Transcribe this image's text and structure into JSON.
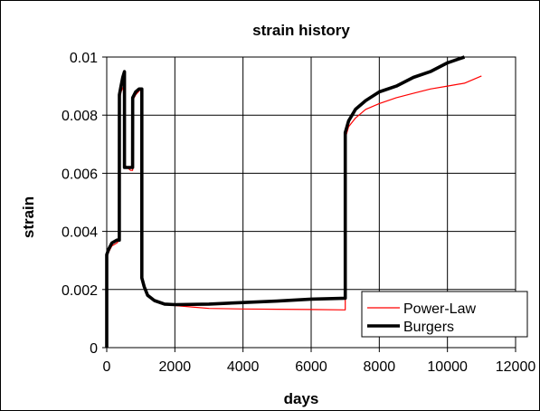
{
  "chart_data": {
    "type": "line",
    "title": "strain history",
    "xlabel": "days",
    "ylabel": "strain",
    "xlim": [
      0,
      12000
    ],
    "ylim": [
      0,
      0.01
    ],
    "xticks": [
      0,
      2000,
      4000,
      6000,
      8000,
      10000,
      12000
    ],
    "xtick_labels": [
      "0",
      "2000",
      "4000",
      "6000",
      "8000",
      "10000",
      "12000"
    ],
    "yticks": [
      0,
      0.002,
      0.004,
      0.006,
      0.008,
      0.01
    ],
    "ytick_labels": [
      "0",
      "0.002",
      "0.004",
      "0.006",
      "0.008",
      "0.01"
    ],
    "grid": true,
    "legend_position": "bottom-right",
    "series": [
      {
        "name": "Power-Law",
        "color": "#ff0000",
        "line_style": "thin",
        "x": [
          0,
          1,
          60,
          150,
          300,
          370,
          371,
          420,
          500,
          520,
          521,
          600,
          700,
          760,
          761,
          850,
          1000,
          1030,
          1031,
          1100,
          1200,
          1400,
          1700,
          2000,
          2500,
          3000,
          4000,
          5000,
          6000,
          7000,
          7001,
          7100,
          7300,
          7600,
          8000,
          8500,
          9000,
          9500,
          10000,
          10500,
          11000
        ],
        "y": [
          0,
          0.0031,
          0.0033,
          0.0035,
          0.0036,
          0.0037,
          0.0085,
          0.0088,
          0.009,
          0.0092,
          0.0063,
          0.0062,
          0.0061,
          0.0061,
          0.0085,
          0.0087,
          0.0089,
          0.0089,
          0.0025,
          0.0021,
          0.0018,
          0.00165,
          0.0015,
          0.00145,
          0.0014,
          0.00135,
          0.00133,
          0.00132,
          0.00131,
          0.0013,
          0.0072,
          0.0076,
          0.0079,
          0.0082,
          0.0084,
          0.0086,
          0.00875,
          0.0089,
          0.009,
          0.0091,
          0.00935
        ]
      },
      {
        "name": "Burgers",
        "color": "#000000",
        "line_style": "thick",
        "x": [
          0,
          1,
          60,
          150,
          300,
          370,
          371,
          420,
          470,
          520,
          521,
          600,
          700,
          760,
          761,
          850,
          950,
          1030,
          1031,
          1100,
          1200,
          1400,
          1700,
          2000,
          3000,
          4000,
          5000,
          6000,
          7000,
          7001,
          7100,
          7300,
          7600,
          8000,
          8500,
          9000,
          9500,
          10000,
          10500
        ],
        "y": [
          0,
          0.0032,
          0.0034,
          0.0036,
          0.0037,
          0.0037,
          0.0087,
          0.009,
          0.0093,
          0.0095,
          0.0062,
          0.0062,
          0.0062,
          0.0062,
          0.0086,
          0.0088,
          0.0089,
          0.0089,
          0.0024,
          0.0021,
          0.0018,
          0.00162,
          0.0015,
          0.00148,
          0.0015,
          0.00155,
          0.0016,
          0.00167,
          0.0017,
          0.0074,
          0.0078,
          0.0082,
          0.0085,
          0.0088,
          0.009,
          0.0093,
          0.0095,
          0.0098,
          0.01
        ]
      }
    ]
  }
}
